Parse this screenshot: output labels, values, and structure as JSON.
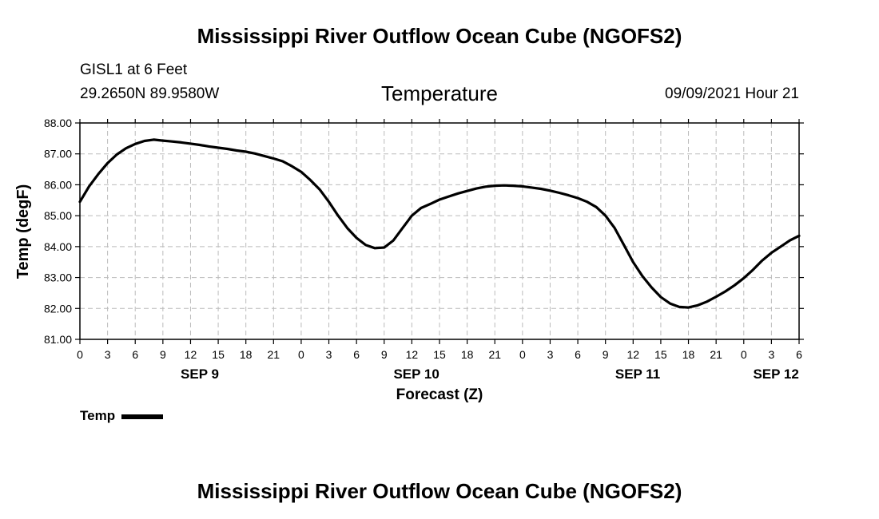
{
  "header": {
    "title": "Mississippi River Outflow Ocean Cube (NGOFS2)",
    "station": "GISL1 at 6 Feet",
    "coords": "29.2650N  89.9580W",
    "subtitle": "Temperature",
    "datetime": "09/09/2021 Hour 21"
  },
  "footer": {
    "title": "Mississippi River Outflow Ocean Cube (NGOFS2)"
  },
  "legend": {
    "label": "Temp"
  },
  "colors": {
    "line": "#000000",
    "grid": "#bbbbbb"
  },
  "chart_data": {
    "type": "line",
    "title": "Temperature",
    "xlabel": "Forecast (Z)",
    "ylabel": "Temp (degF)",
    "xlim": [
      0,
      78
    ],
    "ylim": [
      81,
      88
    ],
    "grid": true,
    "x_ticks": [
      0,
      3,
      6,
      9,
      12,
      15,
      18,
      21,
      24,
      27,
      30,
      33,
      36,
      39,
      42,
      45,
      48,
      51,
      54,
      57,
      60,
      63,
      66,
      69,
      72,
      75,
      78
    ],
    "x_tick_labels": [
      "0",
      "3",
      "6",
      "9",
      "12",
      "15",
      "18",
      "21",
      "0",
      "3",
      "6",
      "9",
      "12",
      "15",
      "18",
      "21",
      "0",
      "3",
      "6",
      "9",
      "12",
      "15",
      "18",
      "21",
      "0",
      "3",
      "6"
    ],
    "y_ticks": [
      81,
      82,
      83,
      84,
      85,
      86,
      87,
      88
    ],
    "y_tick_labels": [
      "81.00",
      "82.00",
      "83.00",
      "84.00",
      "85.00",
      "86.00",
      "87.00",
      "88.00"
    ],
    "date_labels": [
      {
        "x": 13,
        "label": "SEP 9"
      },
      {
        "x": 36.5,
        "label": "SEP 10"
      },
      {
        "x": 60.5,
        "label": "SEP 11"
      },
      {
        "x": 75.5,
        "label": "SEP 12"
      }
    ],
    "series": [
      {
        "name": "Temp",
        "x": [
          0,
          1,
          2,
          3,
          4,
          5,
          6,
          7,
          8,
          9,
          10,
          11,
          12,
          13,
          14,
          15,
          16,
          17,
          18,
          19,
          20,
          21,
          22,
          23,
          24,
          25,
          26,
          27,
          28,
          29,
          30,
          31,
          32,
          33,
          34,
          35,
          36,
          37,
          38,
          39,
          40,
          41,
          42,
          43,
          44,
          45,
          46,
          47,
          48,
          49,
          50,
          51,
          52,
          53,
          54,
          55,
          56,
          57,
          58,
          59,
          60,
          61,
          62,
          63,
          64,
          65,
          66,
          67,
          68,
          69,
          70,
          71,
          72,
          73,
          74,
          75,
          76,
          77,
          78
        ],
        "values": [
          85.45,
          85.95,
          86.35,
          86.7,
          86.98,
          87.18,
          87.32,
          87.42,
          87.46,
          87.43,
          87.4,
          87.37,
          87.33,
          87.29,
          87.24,
          87.2,
          87.16,
          87.11,
          87.07,
          87.01,
          86.93,
          86.85,
          86.76,
          86.6,
          86.42,
          86.15,
          85.85,
          85.45,
          85.0,
          84.6,
          84.28,
          84.05,
          83.95,
          83.97,
          84.2,
          84.6,
          85.0,
          85.25,
          85.38,
          85.52,
          85.62,
          85.72,
          85.8,
          85.88,
          85.94,
          85.97,
          85.98,
          85.97,
          85.95,
          85.91,
          85.87,
          85.81,
          85.74,
          85.66,
          85.57,
          85.45,
          85.28,
          85.0,
          84.6,
          84.05,
          83.5,
          83.05,
          82.68,
          82.37,
          82.16,
          82.05,
          82.03,
          82.1,
          82.22,
          82.38,
          82.55,
          82.75,
          82.98,
          83.25,
          83.55,
          83.8,
          84.0,
          84.2,
          84.35
        ]
      }
    ]
  }
}
